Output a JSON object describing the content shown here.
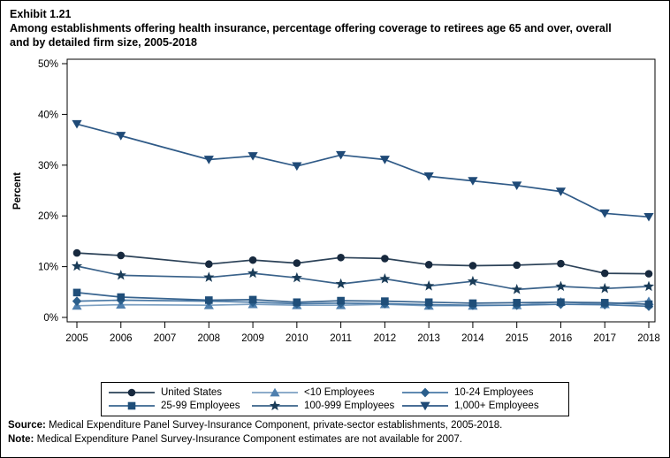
{
  "title": {
    "exhibit": "Exhibit 1.21",
    "line1": "Among establishments offering health insurance, percentage offering coverage to retirees age 65 and over, overall",
    "line2": "and by detailed firm size, 2005-2018"
  },
  "y_axis": {
    "label": "Percent",
    "ticks": [
      "0%",
      "10%",
      "20%",
      "30%",
      "40%",
      "50%"
    ],
    "tick_values": [
      0,
      10,
      20,
      30,
      40,
      50
    ]
  },
  "x_axis": {
    "ticks": [
      "2005",
      "2006",
      "2007",
      "2008",
      "2009",
      "2010",
      "2011",
      "2012",
      "2013",
      "2014",
      "2015",
      "2016",
      "2017",
      "2018"
    ]
  },
  "footnotes": {
    "source_label": "Source:",
    "source_text": "Medical Expenditure Panel Survey-Insurance Component, private-sector establishments, 2005-2018.",
    "note_label": "Note:",
    "note_text": "Medical Expenditure Panel Survey-Insurance Component estimates are not available for 2007."
  },
  "chart_data": {
    "type": "line",
    "title": "Among establishments offering health insurance, percentage offering coverage to retirees age 65 and over, overall and by detailed firm size, 2005-2018",
    "xlabel": "",
    "ylabel": "Percent",
    "ylim": [
      0,
      50
    ],
    "grid": false,
    "legend_position": "bottom",
    "note": "2007 estimates not available; lines connect 2006 to 2008",
    "x": [
      2005,
      2006,
      2007,
      2008,
      2009,
      2010,
      2011,
      2012,
      2013,
      2014,
      2015,
      2016,
      2017,
      2018
    ],
    "series": [
      {
        "name": "United States",
        "marker": "circle",
        "color": "#17293E",
        "line_color": "#2c4258",
        "values": [
          12.7,
          12.2,
          null,
          10.5,
          11.3,
          10.7,
          11.8,
          11.6,
          10.4,
          10.2,
          10.3,
          10.6,
          8.7,
          8.6
        ]
      },
      {
        "name": "<10 Employees",
        "marker": "triangle-up",
        "color": "#4E7FAE",
        "line_color": "#7da0c2",
        "values": [
          2.3,
          2.5,
          null,
          2.4,
          2.6,
          2.4,
          2.4,
          2.6,
          2.3,
          2.3,
          2.4,
          3.1,
          2.6,
          3.2
        ]
      },
      {
        "name": "10-24 Employees",
        "marker": "diamond",
        "color": "#2B5F8C",
        "line_color": "#4a79a6",
        "values": [
          3.2,
          3.4,
          null,
          3.2,
          3.0,
          2.7,
          2.8,
          2.7,
          2.5,
          2.4,
          2.4,
          2.6,
          2.5,
          2.2
        ]
      },
      {
        "name": "25-99 Employees",
        "marker": "square",
        "color": "#1F4E79",
        "line_color": "#38648f",
        "values": [
          4.9,
          4.0,
          null,
          3.4,
          3.5,
          3.0,
          3.3,
          3.2,
          3.0,
          2.8,
          2.9,
          3.0,
          2.9,
          2.6
        ]
      },
      {
        "name": "100-999 Employees",
        "marker": "star",
        "color": "#1A3C58",
        "line_color": "#3a628a",
        "values": [
          10.1,
          8.3,
          null,
          7.9,
          8.7,
          7.8,
          6.6,
          7.6,
          6.2,
          7.1,
          5.5,
          6.1,
          5.7,
          6.1
        ]
      },
      {
        "name": "1,000+ Employees",
        "marker": "triangle-down",
        "color": "#1F4A77",
        "line_color": "#2f5a87",
        "values": [
          38.1,
          35.8,
          null,
          31.1,
          31.8,
          29.8,
          32.0,
          31.1,
          27.8,
          26.9,
          26.0,
          24.8,
          20.5,
          19.8
        ]
      }
    ],
    "legend_order": [
      "United States",
      "<10 Employees",
      "10-24 Employees",
      "25-99 Employees",
      "100-999 Employees",
      "1,000+ Employees"
    ]
  }
}
